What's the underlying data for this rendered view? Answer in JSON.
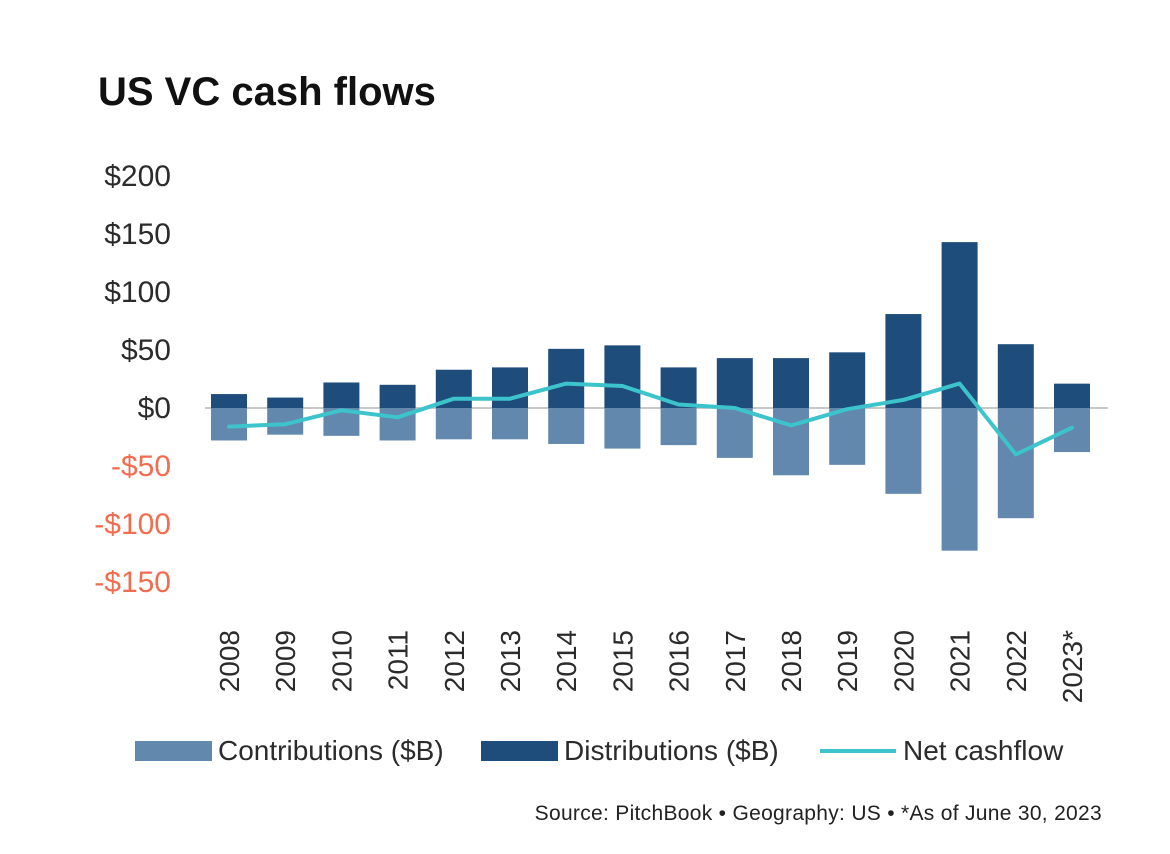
{
  "chart_data": {
    "type": "bar",
    "title": "US VC cash flows",
    "categories": [
      "2008",
      "2009",
      "2010",
      "2011",
      "2012",
      "2013",
      "2014",
      "2015",
      "2016",
      "2017",
      "2018",
      "2019",
      "2020",
      "2021",
      "2022",
      "2023*"
    ],
    "series": [
      {
        "name": "Contributions ($B)",
        "type": "bar",
        "color": "#6388ad",
        "values": [
          -28,
          -23,
          -24,
          -28,
          -27,
          -27,
          -31,
          -35,
          -32,
          -43,
          -58,
          -49,
          -74,
          -123,
          -95,
          -38
        ]
      },
      {
        "name": "Distributions ($B)",
        "type": "bar",
        "color": "#1e4d7b",
        "values": [
          12,
          9,
          22,
          20,
          33,
          35,
          51,
          54,
          35,
          43,
          43,
          48,
          81,
          143,
          55,
          21
        ]
      },
      {
        "name": "Net cashflow",
        "type": "line",
        "color": "#3cc3cb",
        "values": [
          -16,
          -14,
          -2,
          -8,
          8,
          8,
          21,
          19,
          3,
          0,
          -15,
          -1,
          7,
          21,
          -40,
          -17
        ]
      }
    ],
    "y_ticks": [
      200,
      150,
      100,
      50,
      0,
      -50,
      -100,
      -150
    ],
    "y_tick_labels": [
      "$200",
      "$150",
      "$100",
      "$50",
      "$0",
      "-$50",
      "-$100",
      "-$150"
    ],
    "ylim": [
      -150,
      200
    ],
    "xlabel": "",
    "ylabel": "",
    "legend_position": "bottom",
    "source": "Source: PitchBook  •  Geography: US  •  *As of June 30, 2023"
  }
}
